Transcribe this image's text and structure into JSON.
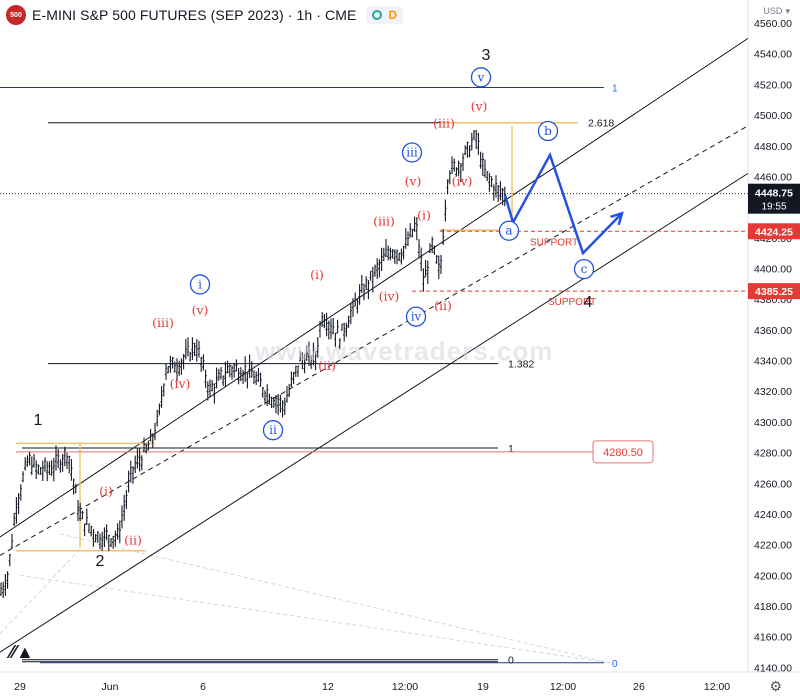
{
  "header": {
    "logo_text": "500",
    "title": "E-MINI S&P 500 FUTURES (SEP 2023) · 1h · CME",
    "indicator_d": "D",
    "currency": "USD"
  },
  "watermark": "www.wavetraders.com",
  "chart_data": {
    "type": "line",
    "subtype": "candlestick-ohlc-annotated",
    "title": "E-MINI S&P 500 FUTURES (SEP 2023) · 1h · CME",
    "ylim": [
      4137,
      4575
    ],
    "yticks": [
      4140,
      4160,
      4180,
      4200,
      4220,
      4240,
      4260,
      4280,
      4300,
      4320,
      4340,
      4360,
      4380,
      4400,
      4420,
      4440,
      4460,
      4480,
      4500,
      4520,
      4540,
      4560
    ],
    "xticks": [
      "29",
      "Jun",
      "6",
      "12",
      "12:00",
      "19",
      "12:00",
      "26",
      "12:00"
    ],
    "price_series": [
      {
        "t": 0,
        "v": 4188
      },
      {
        "t": 8,
        "v": 4200
      },
      {
        "t": 16,
        "v": 4245
      },
      {
        "t": 28,
        "v": 4275
      },
      {
        "t": 38,
        "v": 4268
      },
      {
        "t": 52,
        "v": 4270
      },
      {
        "t": 68,
        "v": 4280
      },
      {
        "t": 80,
        "v": 4238
      },
      {
        "t": 98,
        "v": 4225
      },
      {
        "t": 118,
        "v": 4225
      },
      {
        "t": 132,
        "v": 4268
      },
      {
        "t": 150,
        "v": 4285
      },
      {
        "t": 158,
        "v": 4300
      },
      {
        "t": 166,
        "v": 4335
      },
      {
        "t": 180,
        "v": 4338
      },
      {
        "t": 196,
        "v": 4350
      },
      {
        "t": 210,
        "v": 4320
      },
      {
        "t": 230,
        "v": 4335
      },
      {
        "t": 250,
        "v": 4332
      },
      {
        "t": 268,
        "v": 4318
      },
      {
        "t": 284,
        "v": 4310
      },
      {
        "t": 300,
        "v": 4340
      },
      {
        "t": 316,
        "v": 4342
      },
      {
        "t": 322,
        "v": 4370
      },
      {
        "t": 340,
        "v": 4355
      },
      {
        "t": 358,
        "v": 4380
      },
      {
        "t": 378,
        "v": 4400
      },
      {
        "t": 390,
        "v": 4412
      },
      {
        "t": 402,
        "v": 4410
      },
      {
        "t": 416,
        "v": 4428
      },
      {
        "t": 424,
        "v": 4390
      },
      {
        "t": 432,
        "v": 4415
      },
      {
        "t": 440,
        "v": 4395
      },
      {
        "t": 448,
        "v": 4462
      },
      {
        "t": 460,
        "v": 4468
      },
      {
        "t": 476,
        "v": 4486
      },
      {
        "t": 484,
        "v": 4462
      },
      {
        "t": 498,
        "v": 4450
      },
      {
        "t": 505,
        "v": 4448
      }
    ],
    "projection_path": [
      {
        "t": 505,
        "v": 4448
      },
      {
        "t": 513,
        "v": 4430
      },
      {
        "t": 550,
        "v": 4474
      },
      {
        "t": 583,
        "v": 4410
      },
      {
        "t": 622,
        "v": 4436
      }
    ],
    "channel_lines": [
      {
        "t1": 0,
        "v1": 4225,
        "t2": 748,
        "v2": 4550,
        "style": "solid"
      },
      {
        "t1": 0,
        "v1": 4213,
        "t2": 748,
        "v2": 4493,
        "style": "dashed"
      },
      {
        "t1": 0,
        "v1": 4150,
        "t2": 748,
        "v2": 4462,
        "style": "solid"
      }
    ],
    "fib_levels": [
      {
        "value": 4495,
        "label": "2.618"
      },
      {
        "value": 4338,
        "label": "1.382"
      },
      {
        "value": 4283,
        "label": "1"
      },
      {
        "value": 4145,
        "label": "0"
      }
    ],
    "blue_levels": [
      {
        "value": 4518,
        "label": "1"
      },
      {
        "value": 4143,
        "label": "0"
      }
    ],
    "support_levels": [
      {
        "value": 4424.25,
        "label": "SUPPORT",
        "price_tag": "4424.25"
      },
      {
        "value": 4385.25,
        "label": "SUPPORT",
        "price_tag": "4385.25"
      }
    ],
    "red_level": {
      "value": 4280.5,
      "label": "4280.50"
    },
    "last_price": {
      "value": 4448.75,
      "label": "4448.75",
      "countdown": "19:55"
    },
    "wave_labels": [
      {
        "text": "1",
        "t": 38,
        "v": 4298,
        "style": "black"
      },
      {
        "text": "2",
        "t": 100,
        "v": 4206,
        "style": "black"
      },
      {
        "text": "3",
        "t": 486,
        "v": 4536,
        "style": "black"
      },
      {
        "text": "4",
        "t": 588,
        "v": 4375,
        "style": "black"
      },
      {
        "text": "(i)",
        "t": 106,
        "v": 4252,
        "style": "red"
      },
      {
        "text": "(ii)",
        "t": 133,
        "v": 4220,
        "style": "red"
      },
      {
        "text": "(iii)",
        "t": 163,
        "v": 4362,
        "style": "red"
      },
      {
        "text": "(iv)",
        "t": 180,
        "v": 4322,
        "style": "red"
      },
      {
        "text": "(v)",
        "t": 200,
        "v": 4370,
        "style": "red"
      },
      {
        "text": "i",
        "t": 200,
        "v": 4387,
        "style": "circle"
      },
      {
        "text": "ii",
        "t": 273,
        "v": 4292,
        "style": "circle"
      },
      {
        "text": "(i)",
        "t": 317,
        "v": 4393,
        "style": "red"
      },
      {
        "text": "(ii)",
        "t": 327,
        "v": 4334,
        "style": "red"
      },
      {
        "text": "(iii)",
        "t": 384,
        "v": 4428,
        "style": "red"
      },
      {
        "text": "(iv)",
        "t": 389,
        "v": 4379,
        "style": "red"
      },
      {
        "text": "(v)",
        "t": 413,
        "v": 4454,
        "style": "red"
      },
      {
        "text": "(i)",
        "t": 424,
        "v": 4432,
        "style": "red"
      },
      {
        "text": "(ii)",
        "t": 443,
        "v": 4373,
        "style": "red"
      },
      {
        "text": "iii",
        "t": 412,
        "v": 4473,
        "style": "circle"
      },
      {
        "text": "iv",
        "t": 416,
        "v": 4366,
        "style": "circle"
      },
      {
        "text": "(iii)",
        "t": 444,
        "v": 4492,
        "style": "red"
      },
      {
        "text": "(iv)",
        "t": 462,
        "v": 4454,
        "style": "red"
      },
      {
        "text": "(v)",
        "t": 479,
        "v": 4503,
        "style": "red"
      },
      {
        "text": "v",
        "t": 481,
        "v": 4522,
        "style": "circle"
      },
      {
        "text": "a",
        "t": 509,
        "v": 4422,
        "style": "circle"
      },
      {
        "text": "b",
        "t": 548,
        "v": 4487,
        "style": "circle"
      },
      {
        "text": "c",
        "t": 584,
        "v": 4397,
        "style": "circle"
      }
    ]
  }
}
